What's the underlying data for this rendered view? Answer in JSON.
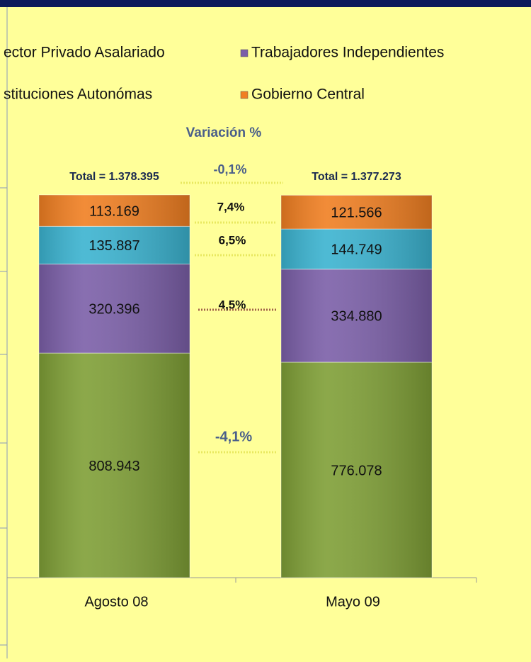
{
  "chart_data": {
    "type": "stacked-bar",
    "categories": [
      "Agosto 08",
      "Mayo 09"
    ],
    "series": [
      {
        "name": "ector Privado Asalariado",
        "color": "#7f9f36",
        "values": [
          808943,
          776078
        ],
        "value_labels": [
          "808.943",
          "776.078"
        ]
      },
      {
        "name": "Trabajadores Independientes",
        "color": "#7b5fa8",
        "values": [
          320396,
          334880
        ],
        "value_labels": [
          "320.396",
          "334.880"
        ]
      },
      {
        "name": "stituciones Autonómas",
        "color": "#3bb3d0",
        "values": [
          135887,
          144749
        ],
        "value_labels": [
          "135.887",
          "144.749"
        ]
      },
      {
        "name": "Gobierno Central",
        "color": "#f07f22",
        "values": [
          113169,
          121566
        ],
        "value_labels": [
          "113.169",
          "121.566"
        ]
      }
    ],
    "totals": [
      "Total = 1.378.395",
      "Total = 1.377.273"
    ],
    "variation_title": "Variación %",
    "variations": [
      "-0,1%",
      "7,4%",
      "6,5%",
      "4,5%",
      "-4,1%"
    ]
  }
}
